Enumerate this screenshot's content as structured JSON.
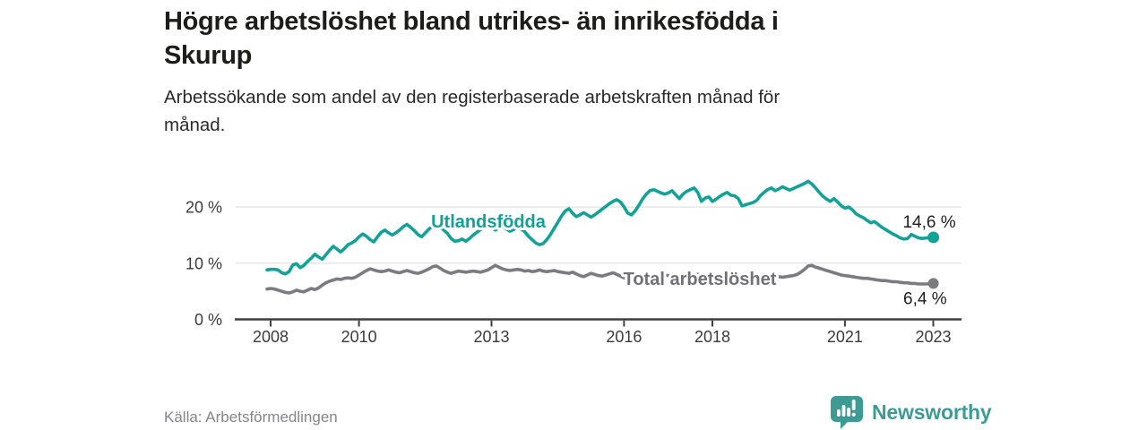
{
  "header": {
    "title": "Högre arbetslöshet bland utrikes- än inrikesfödda i\nSkurup",
    "subtitle": "Arbetssökande som andel av den registerbaserade arbetskraften månad för\nmånad."
  },
  "footer": {
    "source": "Källa: Arbetsförmedlingen",
    "brand_name": "Newsworthy",
    "brand_icon": "bar-chart-speech-bubble-icon",
    "brand_color": "#3e9b94"
  },
  "colors": {
    "background": "#ffffff",
    "grid": "#e4e4e4",
    "axis": "#3f3f3f",
    "foreign_born_line": "#14a297",
    "total_line": "#7b7b81"
  },
  "chart_data": {
    "type": "line",
    "title": "Högre arbetslöshet bland utrikes- än inrikesfödda i Skurup",
    "x_unit": "month",
    "x_start": "2008-01",
    "x_end": "2023-02",
    "x_tick_years": [
      2008,
      2010,
      2013,
      2016,
      2018,
      2021,
      2023
    ],
    "y_ticks": [
      {
        "label": "0 %",
        "value": 0
      },
      {
        "label": "10 %",
        "value": 10
      },
      {
        "label": "20 %",
        "value": 20
      }
    ],
    "ylim": [
      0,
      26
    ],
    "grid": true,
    "legend_position": "inline-labels",
    "series": [
      {
        "name": "Total arbetslöshet",
        "slug": "total-arbetsloshet",
        "color": "#7b7b81",
        "label_color": "#707076",
        "end_label": "6,4 %",
        "end_value": 6.4,
        "values": [
          5.4,
          5.5,
          5.4,
          5.2,
          5.0,
          4.8,
          4.7,
          4.9,
          5.2,
          5.0,
          4.9,
          5.2,
          5.5,
          5.3,
          5.6,
          6.1,
          6.5,
          6.8,
          7.0,
          7.2,
          7.1,
          7.3,
          7.4,
          7.3,
          7.5,
          7.9,
          8.3,
          8.7,
          9.0,
          8.8,
          8.6,
          8.5,
          8.6,
          8.8,
          8.6,
          8.4,
          8.3,
          8.5,
          8.7,
          8.5,
          8.3,
          8.2,
          8.4,
          8.7,
          9.0,
          9.4,
          9.5,
          9.1,
          8.7,
          8.4,
          8.2,
          8.4,
          8.6,
          8.5,
          8.4,
          8.5,
          8.6,
          8.5,
          8.4,
          8.6,
          8.8,
          9.2,
          9.6,
          9.3,
          9.0,
          8.8,
          8.7,
          8.8,
          8.9,
          8.8,
          8.6,
          8.7,
          8.5,
          8.6,
          8.8,
          8.6,
          8.5,
          8.6,
          8.7,
          8.5,
          8.4,
          8.3,
          8.2,
          8.4,
          8.1,
          7.8,
          7.6,
          7.9,
          8.2,
          8.0,
          7.8,
          7.7,
          7.9,
          8.1,
          8.3,
          8.0,
          7.7,
          7.4,
          7.2,
          7.3,
          7.5,
          7.4,
          7.6,
          7.8,
          7.7,
          7.6,
          7.7,
          7.8,
          7.9,
          7.8,
          7.7,
          7.8,
          7.9,
          8.0,
          7.9,
          7.8,
          7.9,
          8.0,
          7.9,
          7.8,
          7.8,
          7.7,
          7.6,
          7.7,
          7.8,
          7.9,
          7.8,
          7.7,
          7.8,
          7.9,
          8.0,
          7.9,
          7.7,
          7.6,
          7.5,
          7.6,
          7.7,
          7.8,
          7.7,
          7.6,
          7.5,
          7.6,
          7.7,
          7.8,
          8.0,
          8.4,
          8.9,
          9.5,
          9.6,
          9.3,
          9.1,
          8.9,
          8.7,
          8.5,
          8.3,
          8.1,
          7.9,
          7.8,
          7.7,
          7.6,
          7.5,
          7.4,
          7.3,
          7.3,
          7.2,
          7.1,
          7.0,
          6.9,
          6.9,
          6.8,
          6.7,
          6.7,
          6.6,
          6.5,
          6.5,
          6.4,
          6.4,
          6.3,
          6.3,
          6.3,
          6.3,
          6.4
        ]
      },
      {
        "name": "Utlandsfödda",
        "slug": "utlandsfodda",
        "color": "#14a297",
        "label_color": "#14a096",
        "end_label": "14,6 %",
        "end_value": 14.6,
        "values": [
          8.8,
          8.9,
          8.9,
          8.8,
          8.3,
          8.1,
          8.5,
          9.7,
          9.9,
          9.2,
          9.6,
          10.3,
          10.9,
          11.6,
          11.1,
          10.7,
          11.5,
          12.3,
          13.0,
          12.5,
          12.0,
          12.6,
          13.3,
          13.6,
          14.0,
          14.7,
          15.2,
          14.8,
          14.2,
          13.8,
          14.7,
          15.5,
          15.9,
          15.4,
          15.0,
          15.4,
          15.9,
          16.5,
          16.9,
          16.4,
          15.8,
          15.1,
          14.7,
          15.4,
          16.1,
          16.6,
          17.0,
          16.5,
          15.9,
          15.3,
          14.4,
          13.9,
          14.0,
          14.3,
          13.9,
          14.4,
          15.0,
          15.5,
          16.0,
          16.3,
          16.6,
          16.3,
          15.9,
          16.2,
          16.5,
          16.1,
          15.7,
          16.0,
          16.4,
          16.1,
          15.6,
          14.8,
          14.2,
          13.6,
          13.3,
          13.5,
          14.2,
          15.1,
          16.2,
          17.3,
          18.4,
          19.3,
          19.7,
          18.9,
          18.3,
          18.6,
          19.0,
          18.6,
          18.2,
          18.6,
          19.1,
          19.6,
          20.1,
          20.6,
          21.0,
          21.3,
          20.9,
          20.0,
          18.9,
          18.6,
          19.3,
          20.3,
          21.4,
          22.3,
          22.9,
          23.1,
          22.8,
          22.5,
          22.3,
          22.5,
          22.9,
          22.2,
          21.5,
          22.3,
          22.8,
          23.1,
          23.4,
          22.6,
          21.0,
          21.6,
          21.8,
          21.0,
          21.4,
          21.9,
          22.3,
          22.6,
          22.1,
          22.0,
          21.5,
          20.2,
          20.4,
          20.6,
          20.8,
          21.2,
          22.0,
          22.6,
          23.1,
          23.4,
          22.9,
          23.2,
          23.6,
          23.3,
          23.0,
          23.3,
          23.6,
          23.9,
          24.2,
          24.6,
          24.1,
          23.4,
          22.6,
          21.9,
          21.4,
          21.0,
          21.5,
          20.9,
          20.2,
          19.8,
          20.0,
          19.5,
          18.8,
          18.4,
          18.1,
          17.6,
          17.2,
          17.4,
          16.9,
          16.4,
          16.0,
          15.6,
          15.2,
          14.9,
          14.5,
          14.3,
          14.4,
          15.1,
          14.8,
          14.5,
          14.4,
          14.5,
          14.5,
          14.6
        ]
      }
    ]
  }
}
